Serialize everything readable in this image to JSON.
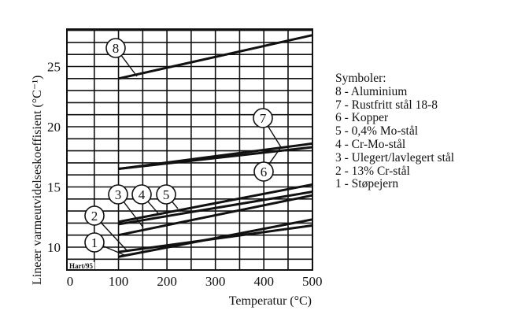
{
  "chart_data": {
    "type": "line",
    "title": "",
    "xlabel": "Temperatur (°C)",
    "ylabel": "Lineær varmeutvidelseskoeffisient (°C⁻¹)",
    "xlim": [
      0,
      500
    ],
    "ylim": [
      8.3,
      28.3
    ],
    "x_ticks": [
      0,
      100,
      200,
      300,
      400,
      500
    ],
    "y_ticks": [
      10,
      15,
      20,
      25
    ],
    "grid": true,
    "grid_x_step": 50,
    "grid_y_step": 1,
    "legend_position": "right",
    "series": [
      {
        "id": "8",
        "name": "Aluminium",
        "x": [
          100,
          500
        ],
        "values": [
          24.0,
          27.6
        ],
        "label_pos": [
          147,
          61
        ],
        "leader_to": [
          174,
          97
        ]
      },
      {
        "id": "7",
        "name": "Rustfritt stål 18-8",
        "x": [
          100,
          500
        ],
        "values": [
          16.5,
          18.6
        ],
        "label_pos": [
          334,
          150
        ],
        "leader_to": [
          357,
          187
        ]
      },
      {
        "id": "6",
        "name": "Kopper",
        "x": [
          100,
          500
        ],
        "values": [
          16.5,
          18.3
        ],
        "label_pos": [
          335,
          218
        ],
        "leader_to": [
          357,
          187
        ]
      },
      {
        "id": "5",
        "name": "0,4% Mo-stål",
        "x": [
          100,
          500
        ],
        "values": [
          12.1,
          15.2
        ],
        "label_pos": [
          211,
          247
        ],
        "leader_to": [
          226,
          265
        ]
      },
      {
        "id": "4",
        "name": "Cr-Mo-stål",
        "x": [
          100,
          500
        ],
        "values": [
          11.9,
          14.6
        ],
        "label_pos": [
          180,
          247
        ],
        "leader_to": [
          201,
          271
        ]
      },
      {
        "id": "3",
        "name": "Ulegert/lavlegert stål",
        "x": [
          100,
          500
        ],
        "values": [
          11.0,
          14.3
        ],
        "label_pos": [
          150,
          247
        ],
        "leader_to": [
          182,
          289
        ]
      },
      {
        "id": "2",
        "name": "13% Cr-stål",
        "x": [
          100,
          500
        ],
        "values": [
          9.6,
          11.8
        ],
        "label_pos": [
          120,
          274
        ],
        "leader_to": [
          161,
          318
        ]
      },
      {
        "id": "1",
        "name": "Støpejern",
        "x": [
          100,
          500
        ],
        "values": [
          9.2,
          12.3
        ],
        "label_pos": [
          120,
          308
        ],
        "leader_to": [
          158,
          324
        ]
      }
    ],
    "watermark": "Hart/95"
  },
  "legend": {
    "title": "Symboler:",
    "items": [
      "8 - Aluminium",
      "7 - Rustfritt stål 18-8",
      "6 - Kopper",
      "5 - 0,4% Mo-stål",
      "4 - Cr-Mo-stål",
      "3 - Ulegert/lavlegert stål",
      "2 - 13% Cr-stål",
      "1 - Støpejern"
    ]
  },
  "colors": {
    "ink": "#111111",
    "background": "#ffffff"
  }
}
